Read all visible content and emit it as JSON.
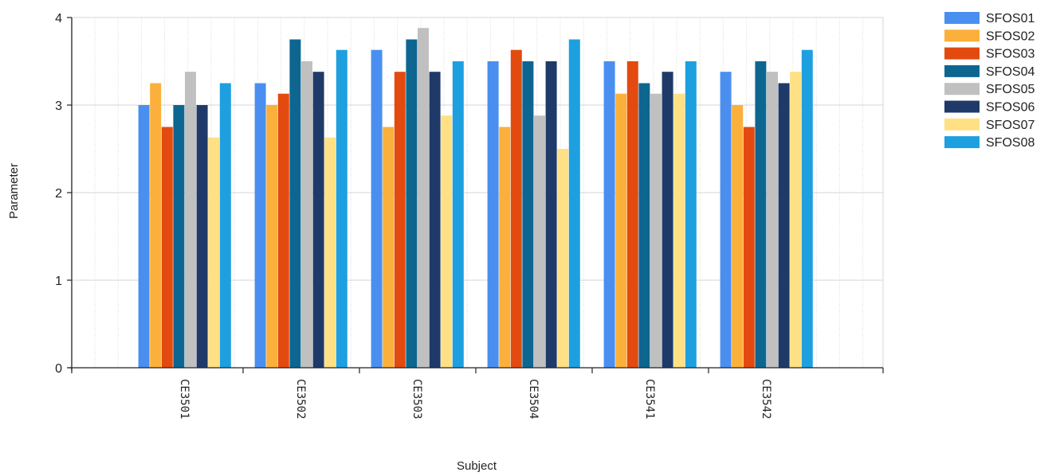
{
  "chart_data": {
    "type": "bar",
    "title": "",
    "xlabel": "Subject",
    "ylabel": "Parameter",
    "ylim": [
      0,
      4
    ],
    "yticks": [
      0,
      1,
      2,
      3,
      4
    ],
    "grid": true,
    "legend_position": "right",
    "categories": [
      "CE3501",
      "CE3502",
      "CE3503",
      "CE3504",
      "CE3541",
      "CE3542"
    ],
    "series": [
      {
        "name": "SFOS01",
        "color": "#4a8ff0",
        "values": [
          3.0,
          3.25,
          3.63,
          3.5,
          3.5,
          3.38
        ]
      },
      {
        "name": "SFOS02",
        "color": "#fbb03b",
        "values": [
          3.25,
          3.0,
          2.75,
          2.75,
          3.13,
          3.0
        ]
      },
      {
        "name": "SFOS03",
        "color": "#e34a0f",
        "values": [
          2.75,
          3.13,
          3.38,
          3.63,
          3.5,
          2.75
        ]
      },
      {
        "name": "SFOS04",
        "color": "#0d6690",
        "values": [
          3.0,
          3.75,
          3.75,
          3.5,
          3.25,
          3.5
        ]
      },
      {
        "name": "SFOS05",
        "color": "#c0c0c0",
        "values": [
          3.38,
          3.5,
          3.88,
          2.88,
          3.13,
          3.38
        ]
      },
      {
        "name": "SFOS06",
        "color": "#1f3a68",
        "values": [
          3.0,
          3.38,
          3.38,
          3.5,
          3.38,
          3.25
        ]
      },
      {
        "name": "SFOS07",
        "color": "#ffe084",
        "values": [
          2.63,
          2.63,
          2.88,
          2.5,
          3.13,
          3.38
        ]
      },
      {
        "name": "SFOS08",
        "color": "#1ea0e0",
        "values": [
          3.25,
          3.63,
          3.5,
          3.75,
          3.5,
          3.63
        ]
      }
    ]
  }
}
